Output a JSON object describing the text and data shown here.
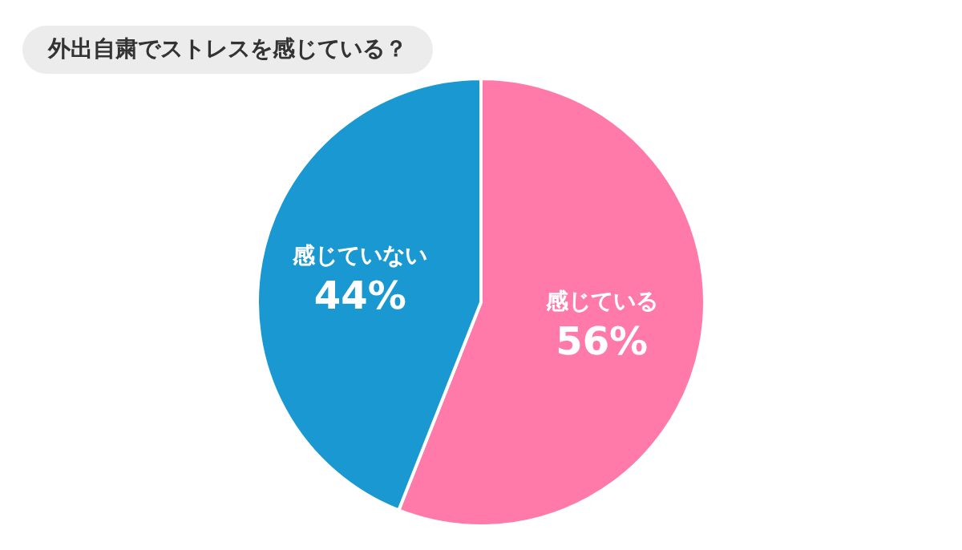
{
  "chart_data": {
    "type": "pie",
    "title": "外出自粛でストレスを感じている？",
    "categories": [
      "感じている",
      "感じていない"
    ],
    "values": [
      56,
      44
    ],
    "colors": [
      "#ff7aa8",
      "#1a98d2"
    ],
    "value_labels": [
      "56%",
      "44%"
    ],
    "legend": false
  }
}
